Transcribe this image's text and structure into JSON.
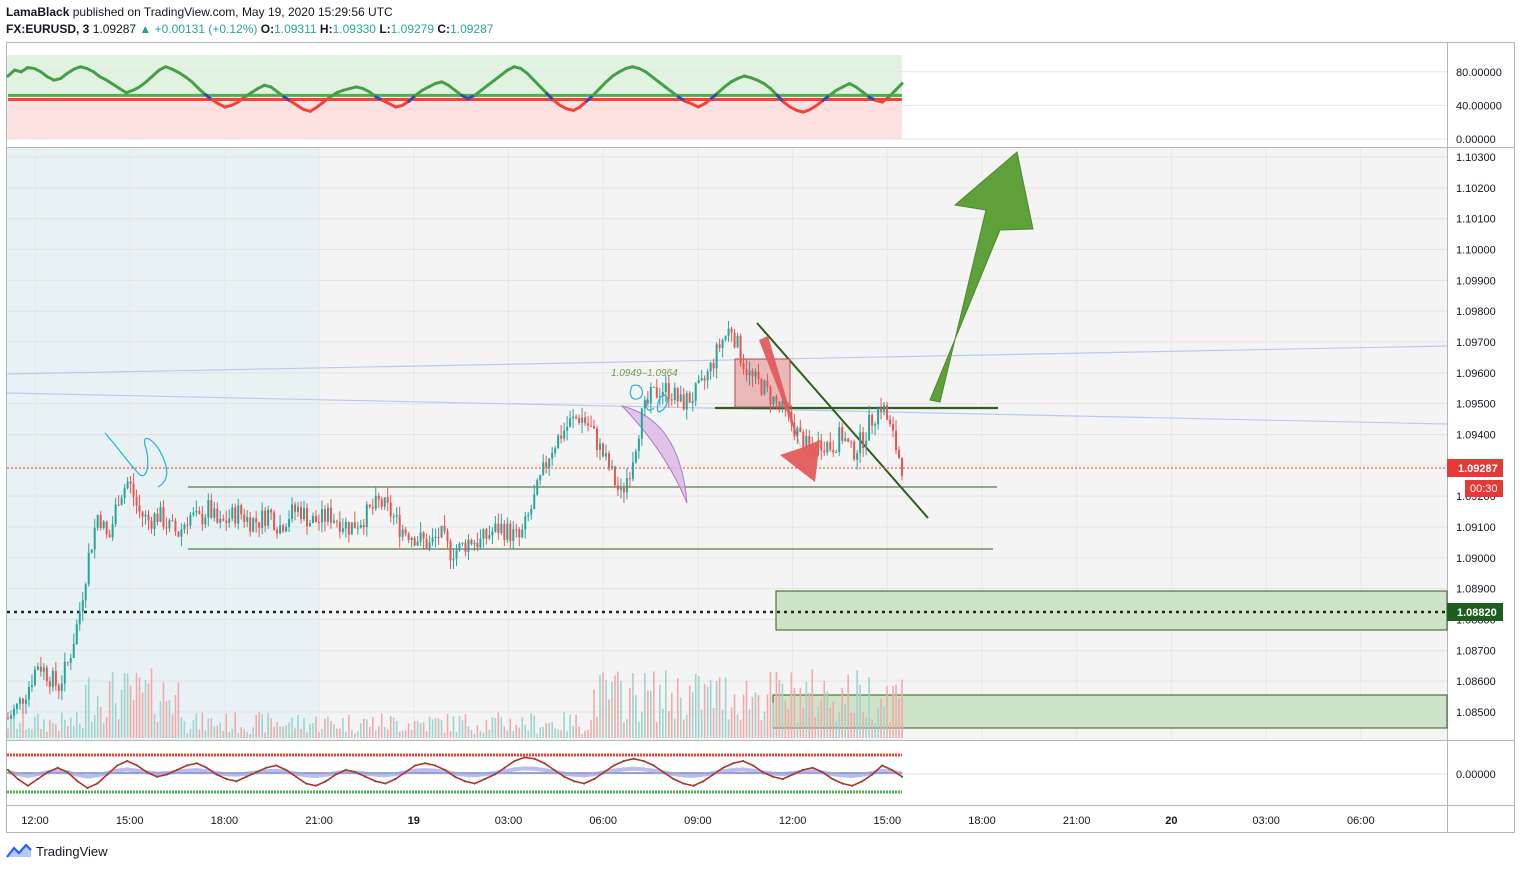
{
  "header": {
    "publisher": "LamaBlack",
    "published_text": "published on TradingView.com, May 19, 2020 15:29:56 UTC",
    "symbol": "FX:EURUSD, 3",
    "last": "1.09287",
    "change": "▲ +0.00131 (+0.12%)",
    "o_label": "O:",
    "o": "1.09311",
    "h_label": "H:",
    "h": "1.09330",
    "l_label": "L:",
    "l": "1.09279",
    "c_label": "C:",
    "c": "1.09287"
  },
  "footer": {
    "brand": "TradingView"
  },
  "colors": {
    "bull": "#26a69a",
    "bear": "#ef5350",
    "osc_green": "#4caf50",
    "osc_red": "#f44336",
    "arrow_up": "#5e9e3a",
    "arrow_down": "#e45b5b",
    "zone": "#cfe3c8",
    "zone_border": "#2e5e1e",
    "badge_price": "#e53935",
    "badge_level": "#1b5e20"
  },
  "chart_data": [
    {
      "type": "line",
      "panel": "top oscillator",
      "ylim": [
        0,
        100
      ],
      "y_ticks": [
        "80.00000",
        "40.00000",
        "0.00000"
      ],
      "upper_line": 52,
      "lower_line": 47,
      "values": [
        75,
        82,
        80,
        85,
        84,
        80,
        74,
        70,
        72,
        78,
        83,
        86,
        84,
        80,
        74,
        70,
        65,
        60,
        55,
        58,
        62,
        68,
        75,
        82,
        86,
        83,
        79,
        74,
        68,
        60,
        53,
        47,
        42,
        38,
        40,
        44,
        50,
        55,
        60,
        64,
        62,
        56,
        50,
        45,
        40,
        35,
        33,
        38,
        44,
        50,
        55,
        58,
        60,
        62,
        60,
        56,
        50,
        46,
        42,
        38,
        40,
        45,
        52,
        58,
        62,
        66,
        68,
        64,
        58,
        52,
        48,
        52,
        58,
        64,
        70,
        76,
        82,
        86,
        84,
        78,
        70,
        62,
        54,
        46,
        40,
        36,
        34,
        38,
        45,
        52,
        60,
        68,
        75,
        80,
        84,
        86,
        84,
        80,
        74,
        68,
        62,
        56,
        50,
        45,
        42,
        38,
        42,
        48,
        55,
        62,
        68,
        72,
        75,
        73,
        70,
        66,
        60,
        52,
        44,
        38,
        34,
        32,
        35,
        40,
        46,
        52,
        58,
        62,
        66,
        62,
        56,
        50,
        46,
        44,
        50,
        58,
        66
      ]
    },
    {
      "type": "candlestick",
      "panel": "price",
      "ylim": [
        1.0845,
        1.1035
      ],
      "y_ticks": [
        "1.10300",
        "1.10200",
        "1.10100",
        "1.10000",
        "1.09900",
        "1.09800",
        "1.09700",
        "1.09600",
        "1.09500",
        "1.09400",
        "1.09300",
        "1.09200",
        "1.09100",
        "1.09000",
        "1.08900",
        "1.08800",
        "1.08700",
        "1.08600",
        "1.08500"
      ],
      "x_ticks": [
        "12:00",
        "15:00",
        "18:00",
        "21:00",
        "19",
        "03:00",
        "06:00",
        "09:00",
        "12:00",
        "15:00",
        "18:00",
        "21:00",
        "20",
        "03:00",
        "06:00"
      ],
      "close_path": [
        1.0848,
        1.0852,
        1.0858,
        1.0866,
        1.0862,
        1.0858,
        1.0866,
        1.088,
        1.09,
        1.0915,
        1.0905,
        1.092,
        1.0925,
        1.0915,
        1.0912,
        1.0914,
        1.091,
        1.0908,
        1.0914,
        1.0912,
        1.0916,
        1.091,
        1.0913,
        1.0915,
        1.0912,
        1.0912,
        1.0915,
        1.091,
        1.0914,
        1.0916,
        1.0912,
        1.0912,
        1.0914,
        1.0912,
        1.091,
        1.0912,
        1.0915,
        1.0918,
        1.0915,
        1.091,
        1.0908,
        1.0906,
        1.0904,
        1.0908,
        1.0902,
        1.0903,
        1.0906,
        1.0905,
        1.0908,
        1.091,
        1.0908,
        1.0906,
        1.0915,
        1.0925,
        1.0935,
        1.094,
        1.0944,
        1.0946,
        1.0942,
        1.0935,
        1.0928,
        1.092,
        1.093,
        1.0945,
        1.0952,
        1.0955,
        1.0954,
        1.095,
        1.0952,
        1.0955,
        1.0962,
        1.097,
        1.0975,
        1.0965,
        1.0958,
        1.0956,
        1.0952,
        1.0948,
        1.0944,
        1.0938,
        1.0934,
        1.0938,
        1.0936,
        1.094,
        1.0934,
        1.0938,
        1.0945,
        1.095,
        1.094,
        1.093
      ],
      "last_price": "1.09287",
      "countdown": "00:30",
      "level_price": "1.08820",
      "annotation": "1.0949–1.0964"
    },
    {
      "type": "line",
      "panel": "bottom oscillator",
      "y_ticks": [
        "0.00000"
      ],
      "values": [
        60,
        40,
        25,
        40,
        55,
        65,
        55,
        35,
        20,
        30,
        50,
        70,
        80,
        70,
        55,
        45,
        50,
        60,
        70,
        75,
        65,
        50,
        40,
        35,
        45,
        55,
        65,
        70,
        60,
        45,
        30,
        25,
        35,
        50,
        60,
        55,
        45,
        35,
        30,
        40,
        55,
        70,
        75,
        70,
        60,
        45,
        35,
        30,
        40,
        50,
        65,
        80,
        88,
        85,
        75,
        60,
        45,
        35,
        30,
        40,
        55,
        70,
        80,
        85,
        80,
        70,
        55,
        40,
        30,
        25,
        35,
        50,
        65,
        75,
        80,
        70,
        55,
        45,
        40,
        50,
        60,
        65,
        55,
        40,
        30,
        25,
        35,
        50,
        70,
        60,
        45
      ]
    }
  ]
}
